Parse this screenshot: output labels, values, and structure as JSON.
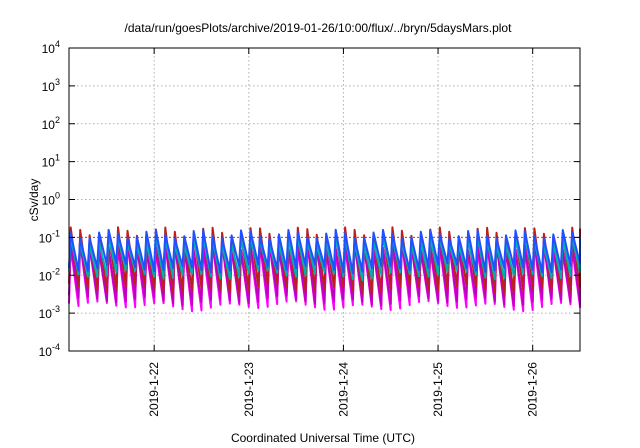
{
  "chart_data": {
    "type": "line",
    "title": "/data/run/goesPlots/archive/2019-01-26/10:00/flux/../bryn/5daysMars.plot",
    "xlabel": "Coordinated Universal Time (UTC)",
    "ylabel": "cSv/day",
    "yscale": "log",
    "ylim": [
      0.0001,
      10000
    ],
    "xlim": [
      "2019-01-21T02:24",
      "2019-01-26T12:00"
    ],
    "grid": true,
    "y_ticks": [
      {
        "base": "10",
        "exp": "-4",
        "value": 0.0001
      },
      {
        "base": "10",
        "exp": "-3",
        "value": 0.001
      },
      {
        "base": "10",
        "exp": "-2",
        "value": 0.01
      },
      {
        "base": "10",
        "exp": "-1",
        "value": 0.1
      },
      {
        "base": "10",
        "exp": "0",
        "value": 1
      },
      {
        "base": "10",
        "exp": "1",
        "value": 10
      },
      {
        "base": "10",
        "exp": "2",
        "value": 100
      },
      {
        "base": "10",
        "exp": "3",
        "value": 1000
      },
      {
        "base": "10",
        "exp": "4",
        "value": 10000
      }
    ],
    "x_ticks": [
      {
        "label": "2019-1-22",
        "value": "2019-01-22T00:00"
      },
      {
        "label": "2019-1-23",
        "value": "2019-01-23T00:00"
      },
      {
        "label": "2019-1-24",
        "value": "2019-01-24T00:00"
      },
      {
        "label": "2019-1-25",
        "value": "2019-01-25T00:00"
      },
      {
        "label": "2019-1-26",
        "value": "2019-01-26T00:00"
      }
    ],
    "threshold": {
      "value": 0.1,
      "color": "#e83030"
    },
    "pattern": {
      "cycles_per_day": 10,
      "series": [
        {
          "color": "#ff00ff",
          "peak": 0.055,
          "trough": 0.0018
        },
        {
          "color": "#c000c0",
          "peak": 0.06,
          "trough": 0.0025
        },
        {
          "color": "#bb2020",
          "peak": 0.14,
          "trough": 0.005
        },
        {
          "color": "#00b0b0",
          "peak": 0.08,
          "trough": 0.012
        },
        {
          "color": "#2050ff",
          "peak": 0.12,
          "trough": 0.018
        }
      ]
    }
  }
}
